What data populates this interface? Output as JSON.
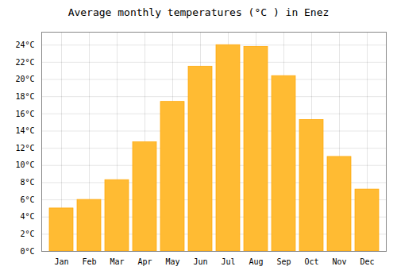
{
  "chart_data": {
    "type": "bar",
    "title": "Average monthly temperatures (°C ) in Enez",
    "categories": [
      "Jan",
      "Feb",
      "Mar",
      "Apr",
      "May",
      "Jun",
      "Jul",
      "Aug",
      "Sep",
      "Oct",
      "Nov",
      "Dec"
    ],
    "values": [
      5.0,
      6.0,
      8.3,
      12.7,
      17.4,
      21.5,
      24.0,
      23.8,
      20.4,
      15.3,
      11.0,
      7.2
    ],
    "color": "#FFBB33",
    "ylim": [
      0,
      25.5
    ],
    "yticks": [
      {
        "value": 0,
        "label": "0°C"
      },
      {
        "value": 2,
        "label": "2°C"
      },
      {
        "value": 4,
        "label": "4°C"
      },
      {
        "value": 6,
        "label": "6°C"
      },
      {
        "value": 8,
        "label": "8°C"
      },
      {
        "value": 10,
        "label": "10°C"
      },
      {
        "value": 12,
        "label": "12°C"
      },
      {
        "value": 14,
        "label": "14°C"
      },
      {
        "value": 16,
        "label": "16°C"
      },
      {
        "value": 18,
        "label": "18°C"
      },
      {
        "value": 20,
        "label": "20°C"
      },
      {
        "value": 22,
        "label": "22°C"
      },
      {
        "value": 24,
        "label": "24°C"
      }
    ],
    "grid": true
  }
}
